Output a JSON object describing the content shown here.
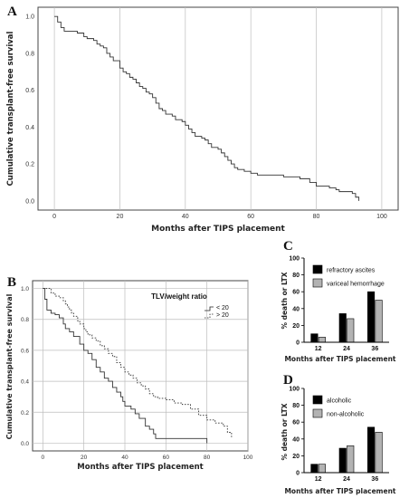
{
  "chart_data": [
    {
      "panel": "A",
      "type": "line",
      "xlabel": "Months after TIPS placement",
      "ylabel": "Cumulative transplant-free survival",
      "xlim": [
        -5,
        105
      ],
      "ylim": [
        -0.05,
        1.05
      ],
      "xticks": [
        "0",
        "20",
        "40",
        "60",
        "80",
        "100"
      ],
      "yticks": [
        "0.0",
        "0.2",
        "0.4",
        "0.6",
        "0.8",
        "1.0"
      ],
      "grid": "vertical",
      "series": [
        {
          "style": "solid",
          "points": [
            [
              0,
              1.0
            ],
            [
              1,
              0.97
            ],
            [
              2,
              0.94
            ],
            [
              3,
              0.92
            ],
            [
              7,
              0.91
            ],
            [
              9,
              0.89
            ],
            [
              10,
              0.88
            ],
            [
              12,
              0.87
            ],
            [
              13,
              0.85
            ],
            [
              14,
              0.84
            ],
            [
              15,
              0.83
            ],
            [
              16,
              0.8
            ],
            [
              17,
              0.78
            ],
            [
              18,
              0.76
            ],
            [
              20,
              0.72
            ],
            [
              21,
              0.7
            ],
            [
              22,
              0.69
            ],
            [
              23,
              0.67
            ],
            [
              24,
              0.66
            ],
            [
              25,
              0.64
            ],
            [
              26,
              0.62
            ],
            [
              27,
              0.61
            ],
            [
              28,
              0.59
            ],
            [
              29,
              0.58
            ],
            [
              30,
              0.56
            ],
            [
              31,
              0.53
            ],
            [
              32,
              0.5
            ],
            [
              33,
              0.49
            ],
            [
              34,
              0.47
            ],
            [
              36,
              0.46
            ],
            [
              37,
              0.44
            ],
            [
              39,
              0.43
            ],
            [
              40,
              0.41
            ],
            [
              41,
              0.39
            ],
            [
              42,
              0.37
            ],
            [
              43,
              0.35
            ],
            [
              45,
              0.34
            ],
            [
              46,
              0.33
            ],
            [
              47,
              0.31
            ],
            [
              48,
              0.29
            ],
            [
              50,
              0.28
            ],
            [
              51,
              0.26
            ],
            [
              52,
              0.24
            ],
            [
              53,
              0.22
            ],
            [
              54,
              0.2
            ],
            [
              55,
              0.18
            ],
            [
              56,
              0.17
            ],
            [
              58,
              0.16
            ],
            [
              60,
              0.15
            ],
            [
              62,
              0.14
            ],
            [
              70,
              0.13
            ],
            [
              75,
              0.12
            ],
            [
              78,
              0.1
            ],
            [
              80,
              0.08
            ],
            [
              84,
              0.07
            ],
            [
              86,
              0.06
            ],
            [
              87,
              0.05
            ],
            [
              91,
              0.04
            ],
            [
              92,
              0.02
            ],
            [
              93,
              0.0
            ]
          ]
        }
      ]
    },
    {
      "panel": "B",
      "type": "line",
      "xlabel": "Months after TIPS placement",
      "ylabel": "Cumulative transplant-free survival",
      "xlim": [
        -5,
        100
      ],
      "ylim": [
        -0.05,
        1.05
      ],
      "xticks": [
        "0",
        "20",
        "40",
        "60",
        "80",
        "100"
      ],
      "yticks": [
        "0.0",
        "0.2",
        "0.4",
        "0.6",
        "0.8",
        "1.0"
      ],
      "grid": "both",
      "legend_title": "TLV/weight ratio",
      "series": [
        {
          "name": "< 20",
          "style": "solid",
          "points": [
            [
              0,
              1.0
            ],
            [
              1,
              0.93
            ],
            [
              2,
              0.86
            ],
            [
              4,
              0.84
            ],
            [
              6,
              0.83
            ],
            [
              8,
              0.81
            ],
            [
              10,
              0.77
            ],
            [
              11,
              0.74
            ],
            [
              13,
              0.72
            ],
            [
              15,
              0.69
            ],
            [
              18,
              0.64
            ],
            [
              20,
              0.6
            ],
            [
              22,
              0.58
            ],
            [
              24,
              0.54
            ],
            [
              26,
              0.49
            ],
            [
              28,
              0.46
            ],
            [
              30,
              0.42
            ],
            [
              32,
              0.4
            ],
            [
              34,
              0.36
            ],
            [
              36,
              0.33
            ],
            [
              38,
              0.3
            ],
            [
              39,
              0.27
            ],
            [
              40,
              0.24
            ],
            [
              43,
              0.22
            ],
            [
              45,
              0.19
            ],
            [
              47,
              0.16
            ],
            [
              50,
              0.11
            ],
            [
              52,
              0.09
            ],
            [
              54,
              0.06
            ],
            [
              55,
              0.03
            ],
            [
              80,
              0.0
            ]
          ]
        },
        {
          "name": "> 20",
          "style": "dashed",
          "points": [
            [
              0,
              1.0
            ],
            [
              4,
              0.97
            ],
            [
              6,
              0.95
            ],
            [
              8,
              0.94
            ],
            [
              10,
              0.92
            ],
            [
              11,
              0.9
            ],
            [
              12,
              0.88
            ],
            [
              13,
              0.86
            ],
            [
              14,
              0.84
            ],
            [
              15,
              0.82
            ],
            [
              17,
              0.79
            ],
            [
              18,
              0.77
            ],
            [
              20,
              0.74
            ],
            [
              21,
              0.72
            ],
            [
              22,
              0.7
            ],
            [
              24,
              0.68
            ],
            [
              26,
              0.66
            ],
            [
              28,
              0.63
            ],
            [
              30,
              0.61
            ],
            [
              32,
              0.58
            ],
            [
              34,
              0.56
            ],
            [
              36,
              0.52
            ],
            [
              38,
              0.49
            ],
            [
              40,
              0.46
            ],
            [
              42,
              0.44
            ],
            [
              44,
              0.42
            ],
            [
              46,
              0.39
            ],
            [
              48,
              0.37
            ],
            [
              50,
              0.35
            ],
            [
              52,
              0.32
            ],
            [
              54,
              0.3
            ],
            [
              56,
              0.29
            ],
            [
              60,
              0.28
            ],
            [
              64,
              0.26
            ],
            [
              68,
              0.25
            ],
            [
              72,
              0.22
            ],
            [
              76,
              0.18
            ],
            [
              80,
              0.15
            ],
            [
              84,
              0.13
            ],
            [
              88,
              0.11
            ],
            [
              90,
              0.07
            ],
            [
              92,
              0.03
            ]
          ]
        }
      ]
    },
    {
      "panel": "C",
      "type": "bar",
      "xlabel": "Months after TIPS placement",
      "ylabel": "% death or LTX",
      "categories": [
        "12",
        "24",
        "36"
      ],
      "ylim": [
        0,
        100
      ],
      "yticks": [
        "0",
        "20",
        "40",
        "60",
        "80",
        "100"
      ],
      "legend_position": "top-left",
      "series": [
        {
          "name": "refractory ascites",
          "color": "#000000",
          "values": [
            10,
            34,
            60
          ]
        },
        {
          "name": "variceal hemorrhage",
          "color": "#b3b3b3",
          "values": [
            6,
            28,
            50
          ]
        }
      ]
    },
    {
      "panel": "D",
      "type": "bar",
      "xlabel": "Months after TIPS placement",
      "ylabel": "% death or LTX",
      "categories": [
        "12",
        "24",
        "36"
      ],
      "ylim": [
        0,
        100
      ],
      "yticks": [
        "0",
        "20",
        "40",
        "60",
        "80",
        "100"
      ],
      "legend_position": "top-left",
      "series": [
        {
          "name": "alcoholic",
          "color": "#000000",
          "values": [
            10,
            29,
            54
          ]
        },
        {
          "name": "non-alcoholic",
          "color": "#b3b3b3",
          "values": [
            10,
            32,
            48
          ]
        }
      ]
    }
  ]
}
